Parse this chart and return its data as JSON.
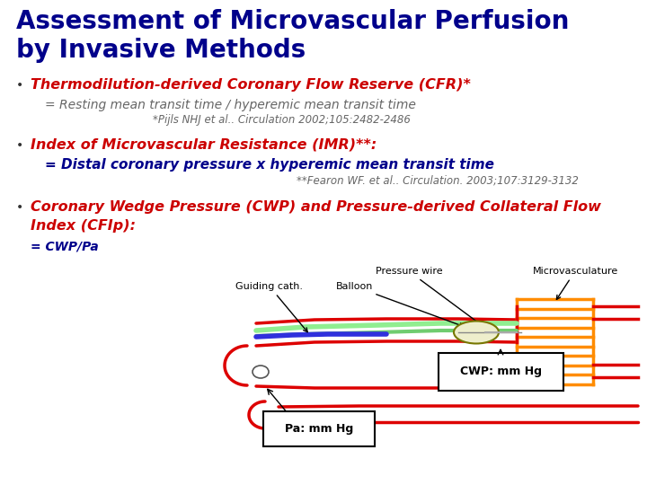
{
  "bg_color": "#ffffff",
  "title_line1": "Assessment of Microvascular Perfusion",
  "title_line2": "by Invasive Methods",
  "title_color": "#00008B",
  "title_fontsize": 20,
  "bullet1_header": "Thermodilution-derived Coronary Flow Reserve (CFR)*",
  "bullet1_color": "#CC0000",
  "bullet1_fontsize": 11.5,
  "bullet1_sub1": "= Resting mean transit time / hyperemic mean transit time",
  "bullet1_sub1_color": "#666666",
  "bullet1_sub1_fontsize": 10,
  "bullet1_ref": "*Pijls NHJ et al.. Circulation 2002;105:2482-2486",
  "bullet1_ref_fontsize": 8.5,
  "bullet1_ref_color": "#666666",
  "bullet2_header": "Index of Microvascular Resistance (IMR)**:",
  "bullet2_color": "#CC0000",
  "bullet2_fontsize": 11.5,
  "bullet2_sub1": "= Distal coronary pressure x hyperemic mean transit time",
  "bullet2_sub1_color": "#00008B",
  "bullet2_sub1_fontsize": 11,
  "bullet2_ref": "**Fearon WF. et al.. Circulation. 2003;107:3129-3132",
  "bullet2_ref_fontsize": 8.5,
  "bullet2_ref_color": "#666666",
  "bullet3_header1": "Coronary Wedge Pressure (CWP) and Pressure-derived Collateral Flow",
  "bullet3_header2": "Index (CFIp):",
  "bullet3_color": "#CC0000",
  "bullet3_fontsize": 11.5,
  "bullet3_sub1": "= CWP/Pa",
  "bullet3_sub1_color": "#00008B",
  "bullet3_sub1_fontsize": 10,
  "bullet_dot_color": "#333333",
  "bullet_dot_fontsize": 10
}
